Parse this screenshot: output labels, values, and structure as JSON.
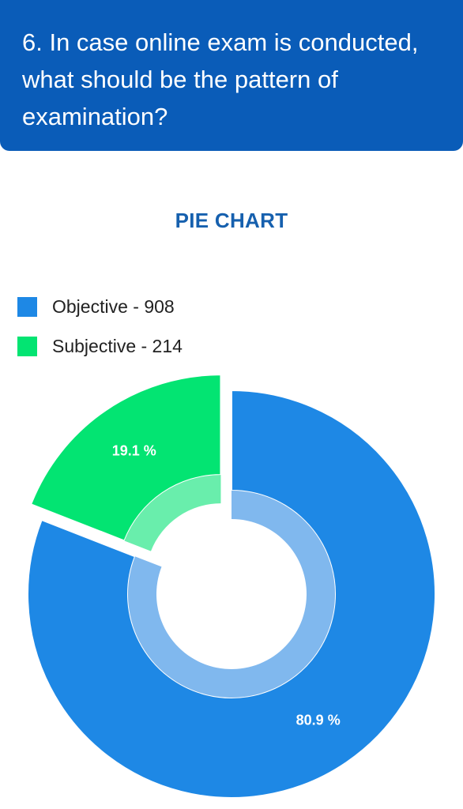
{
  "header": {
    "question": "6. In case online exam is conducted, what should be the pattern of examination?"
  },
  "chart_data": {
    "type": "pie",
    "title": "PIE CHART",
    "categories": [
      "Objective",
      "Subjective"
    ],
    "values": [
      908,
      214
    ],
    "percent_labels": [
      "80.9 %",
      "19.1 %"
    ],
    "legend_labels": [
      "Objective - 908",
      "Subjective - 214"
    ],
    "colors": [
      "#1e88e5",
      "#03e472"
    ],
    "inner_ring_colors": [
      "#80b8ee",
      "#69eeac"
    ],
    "exploded": "Subjective",
    "legend_position": "top-left"
  }
}
